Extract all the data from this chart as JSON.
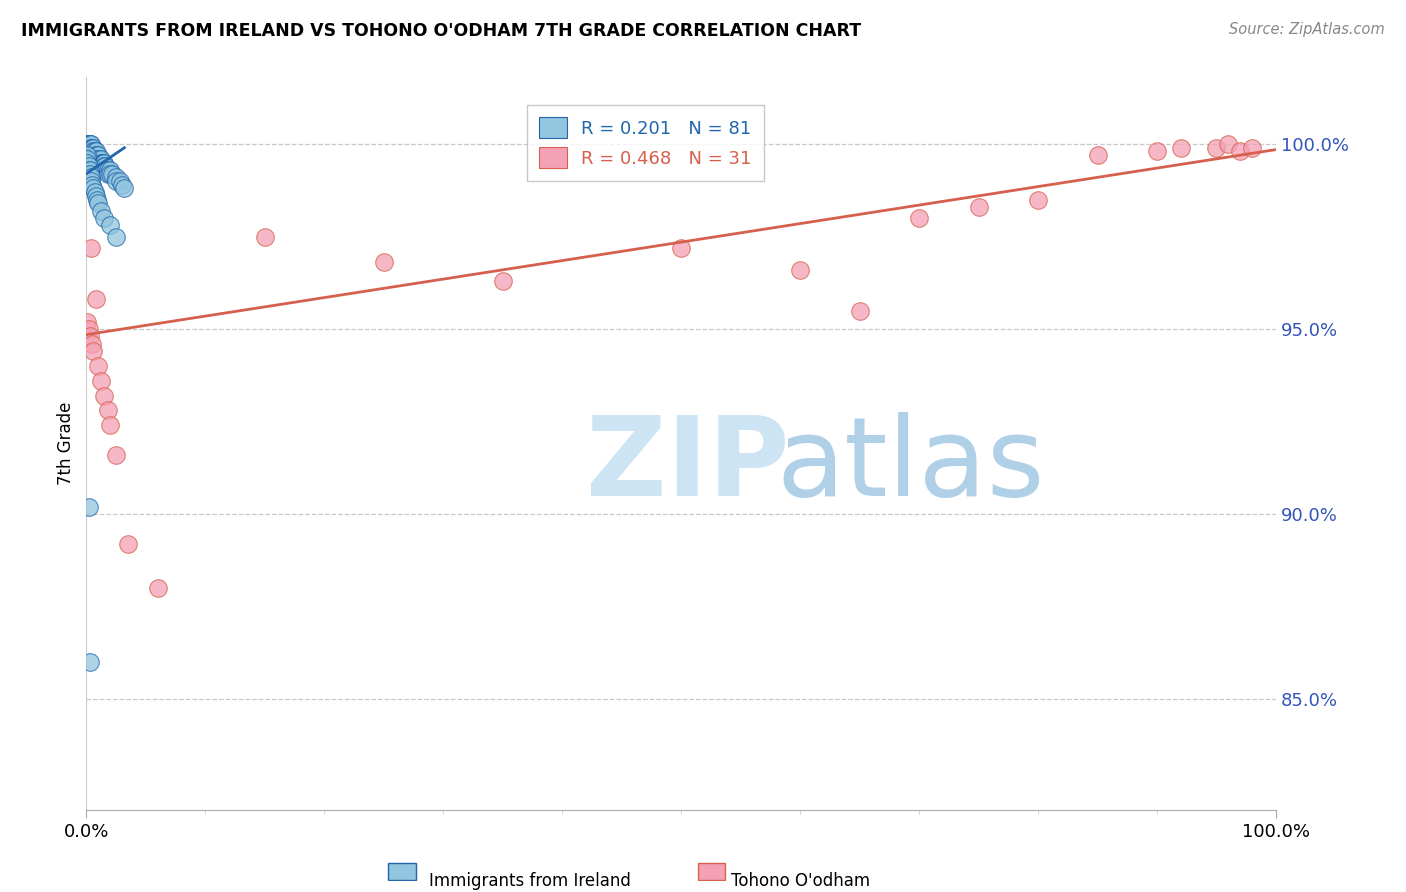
{
  "title": "IMMIGRANTS FROM IRELAND VS TOHONO O'ODHAM 7TH GRADE CORRELATION CHART",
  "source": "Source: ZipAtlas.com",
  "ylabel": "7th Grade",
  "ytick_values": [
    0.85,
    0.9,
    0.95,
    1.0
  ],
  "xlim": [
    0.0,
    1.0
  ],
  "ylim": [
    0.82,
    1.018
  ],
  "blue_color": "#92c5de",
  "pink_color": "#f4a0b5",
  "blue_line_color": "#2166ac",
  "pink_line_color": "#d6604d",
  "watermark_zip_color": "#cce4f4",
  "watermark_atlas_color": "#b0d0e8",
  "blue_x": [
    0.001,
    0.001,
    0.001,
    0.002,
    0.002,
    0.002,
    0.002,
    0.002,
    0.002,
    0.003,
    0.003,
    0.003,
    0.003,
    0.003,
    0.003,
    0.004,
    0.004,
    0.004,
    0.004,
    0.004,
    0.005,
    0.005,
    0.005,
    0.005,
    0.006,
    0.006,
    0.006,
    0.007,
    0.007,
    0.007,
    0.008,
    0.008,
    0.008,
    0.009,
    0.009,
    0.01,
    0.01,
    0.01,
    0.011,
    0.011,
    0.012,
    0.012,
    0.013,
    0.013,
    0.014,
    0.014,
    0.015,
    0.015,
    0.016,
    0.016,
    0.018,
    0.018,
    0.02,
    0.02,
    0.022,
    0.025,
    0.025,
    0.028,
    0.03,
    0.032,
    0.001,
    0.001,
    0.001,
    0.002,
    0.002,
    0.003,
    0.003,
    0.004,
    0.004,
    0.005,
    0.006,
    0.007,
    0.008,
    0.009,
    0.01,
    0.012,
    0.015,
    0.02,
    0.025,
    0.002,
    0.003
  ],
  "blue_y": [
    1.0,
    1.0,
    0.999,
    1.0,
    1.0,
    0.999,
    0.999,
    0.998,
    0.998,
    1.0,
    1.0,
    0.999,
    0.999,
    0.998,
    0.997,
    1.0,
    0.999,
    0.998,
    0.997,
    0.996,
    0.999,
    0.998,
    0.997,
    0.996,
    0.999,
    0.998,
    0.997,
    0.998,
    0.997,
    0.996,
    0.998,
    0.997,
    0.996,
    0.997,
    0.996,
    0.997,
    0.996,
    0.995,
    0.996,
    0.995,
    0.996,
    0.995,
    0.995,
    0.994,
    0.995,
    0.994,
    0.995,
    0.994,
    0.994,
    0.993,
    0.993,
    0.992,
    0.993,
    0.992,
    0.992,
    0.991,
    0.99,
    0.99,
    0.989,
    0.988,
    0.997,
    0.996,
    0.995,
    0.994,
    0.993,
    0.993,
    0.992,
    0.991,
    0.99,
    0.989,
    0.988,
    0.987,
    0.986,
    0.985,
    0.984,
    0.982,
    0.98,
    0.978,
    0.975,
    0.902,
    0.86
  ],
  "pink_x": [
    0.001,
    0.002,
    0.003,
    0.004,
    0.005,
    0.006,
    0.008,
    0.01,
    0.012,
    0.015,
    0.018,
    0.02,
    0.025,
    0.035,
    0.06,
    0.15,
    0.25,
    0.35,
    0.5,
    0.6,
    0.65,
    0.7,
    0.75,
    0.8,
    0.85,
    0.9,
    0.92,
    0.95,
    0.96,
    0.97,
    0.98
  ],
  "pink_y": [
    0.952,
    0.95,
    0.948,
    0.972,
    0.946,
    0.944,
    0.958,
    0.94,
    0.936,
    0.932,
    0.928,
    0.924,
    0.916,
    0.892,
    0.88,
    0.975,
    0.968,
    0.963,
    0.972,
    0.966,
    0.955,
    0.98,
    0.983,
    0.985,
    0.997,
    0.998,
    0.999,
    0.999,
    1.0,
    0.998,
    0.999
  ],
  "blue_line_x": [
    0.0,
    0.032
  ],
  "blue_line_y_start": 0.992,
  "blue_line_y_end": 0.999,
  "pink_line_x": [
    0.0,
    1.0
  ],
  "pink_line_y_start": 0.9485,
  "pink_line_y_end": 0.9985
}
